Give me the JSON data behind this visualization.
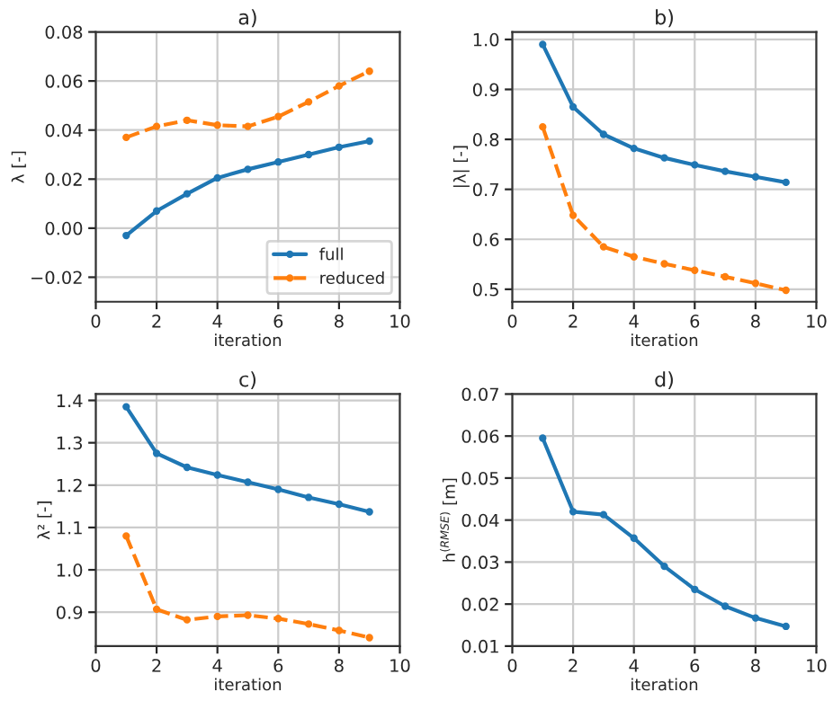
{
  "chart_data": [
    {
      "type": "line",
      "title": "a)",
      "xlabel": "iteration",
      "ylabel": "λ [-]",
      "x": [
        1,
        2,
        3,
        4,
        5,
        6,
        7,
        8,
        9
      ],
      "xlim": [
        0,
        10
      ],
      "xticks": [
        0,
        2,
        4,
        6,
        8,
        10
      ],
      "ylim": [
        -0.03,
        0.08
      ],
      "yticks": [
        {
          "value": -0.02,
          "label": "−0.02"
        },
        {
          "value": 0,
          "label": "0.00"
        },
        0.02,
        0.04,
        0.06,
        0.08
      ],
      "grid": true,
      "marker": "circle",
      "legend": "bottom right",
      "series": [
        {
          "name": "full",
          "color": "#1f77b4",
          "line_style": "solid",
          "values": [
            -0.003,
            0.007,
            0.014,
            0.0205,
            0.024,
            0.027,
            0.03,
            0.033,
            0.0355
          ]
        },
        {
          "name": "reduced",
          "color": "#ff7f0e",
          "line_style": "dashed",
          "values": [
            0.037,
            0.0415,
            0.044,
            0.042,
            0.0415,
            0.0455,
            0.0515,
            0.058,
            0.064
          ]
        }
      ]
    },
    {
      "type": "line",
      "title": "b)",
      "xlabel": "iteration",
      "ylabel": "|λ| [-]",
      "x": [
        1,
        2,
        3,
        4,
        5,
        6,
        7,
        8,
        9
      ],
      "xlim": [
        0,
        10
      ],
      "xticks": [
        0,
        2,
        4,
        6,
        8,
        10
      ],
      "ylim": [
        0.475,
        1.015
      ],
      "yticks": [
        0.5,
        0.6,
        0.7,
        0.8,
        0.9,
        {
          "value": 1,
          "label": "1.0"
        }
      ],
      "grid": true,
      "marker": "circle",
      "series": [
        {
          "color": "#1f77b4",
          "line_style": "solid",
          "values": [
            0.99,
            0.865,
            0.81,
            0.782,
            0.763,
            0.749,
            0.736,
            0.725,
            0.714
          ]
        },
        {
          "color": "#ff7f0e",
          "line_style": "dashed",
          "values": [
            0.825,
            0.648,
            0.585,
            0.565,
            0.551,
            0.538,
            0.525,
            0.512,
            0.498
          ]
        }
      ]
    },
    {
      "type": "line",
      "title": "c)",
      "xlabel": "iteration",
      "ylabel": "λ² [-]",
      "x": [
        1,
        2,
        3,
        4,
        5,
        6,
        7,
        8,
        9
      ],
      "xlim": [
        0,
        10
      ],
      "xticks": [
        0,
        2,
        4,
        6,
        8,
        10
      ],
      "ylim": [
        0.82,
        1.415
      ],
      "yticks": [
        0.9,
        {
          "value": 1,
          "label": "1.0"
        },
        1.1,
        1.2,
        1.3,
        1.4
      ],
      "grid": true,
      "marker": "circle",
      "series": [
        {
          "color": "#1f77b4",
          "line_style": "solid",
          "values": [
            1.385,
            1.275,
            1.242,
            1.224,
            1.207,
            1.19,
            1.171,
            1.155,
            1.137
          ]
        },
        {
          "color": "#ff7f0e",
          "line_style": "dashed",
          "values": [
            1.08,
            0.907,
            0.882,
            0.89,
            0.893,
            0.885,
            0.872,
            0.857,
            0.84
          ]
        }
      ]
    },
    {
      "type": "line",
      "title": "d)",
      "xlabel": "iteration",
      "ylabel": "h$^{(RMSE)}$ [m]",
      "x": [
        1,
        2,
        3,
        4,
        5,
        6,
        7,
        8,
        9
      ],
      "xlim": [
        0,
        10
      ],
      "xticks": [
        0,
        2,
        4,
        6,
        8,
        10
      ],
      "ylim": [
        0.01,
        0.07
      ],
      "yticks": [
        0.01,
        0.02,
        0.03,
        0.04,
        0.05,
        0.06,
        0.07
      ],
      "grid": true,
      "marker": "circle",
      "series": [
        {
          "color": "#1f77b4",
          "line_style": "solid",
          "values": [
            0.0595,
            0.042,
            0.0413,
            0.0357,
            0.029,
            0.0235,
            0.0195,
            0.0167,
            0.0147
          ]
        }
      ]
    }
  ]
}
